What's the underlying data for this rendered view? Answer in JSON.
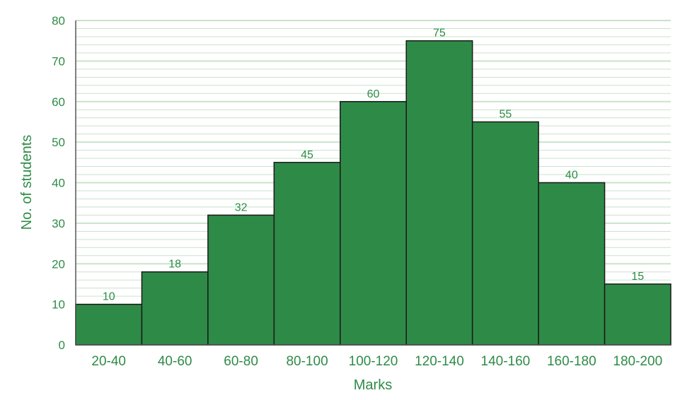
{
  "chart_data": {
    "type": "bar",
    "title": "",
    "xlabel": "Marks",
    "ylabel": "No. of students",
    "categories": [
      "20-40",
      "40-60",
      "60-80",
      "80-100",
      "100-120",
      "120-140",
      "140-160",
      "160-180",
      "180-200"
    ],
    "values": [
      10,
      18,
      32,
      45,
      60,
      75,
      55,
      40,
      15
    ],
    "data_labels": [
      "10",
      "18",
      "32",
      "45",
      "60",
      "75",
      "55",
      "40",
      "15"
    ],
    "ylim": [
      0,
      80
    ],
    "yticks": [
      "0",
      "10",
      "20",
      "30",
      "40",
      "50",
      "60",
      "70",
      "80"
    ],
    "grid": true,
    "legend": "none"
  },
  "colors": {
    "bar_fill": "#2e8b47",
    "bar_stroke": "#1a1a1a",
    "text": "#2e8b47",
    "grid": "#c9e3c9",
    "axis": "#555555"
  }
}
